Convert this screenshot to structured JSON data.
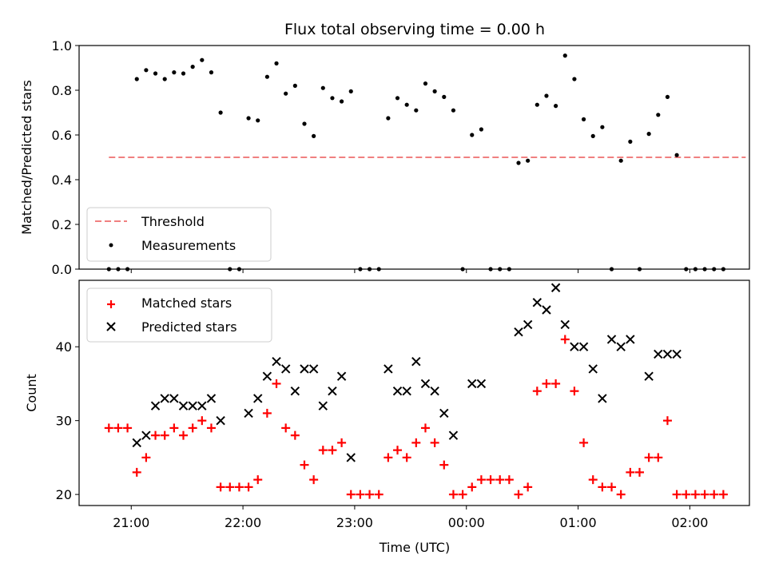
{
  "chart_data": [
    {
      "type": "scatter",
      "title": "Flux total observing time = 0.00 h",
      "xlabel": "",
      "ylabel": "Matched/Predicted stars",
      "xlim": [
        "20:32",
        "02:32"
      ],
      "ylim": [
        0,
        1.0
      ],
      "yticks": [
        "0.0",
        "0.2",
        "0.4",
        "0.6",
        "0.8",
        "1.0"
      ],
      "xticks_at": [
        "21:00",
        "22:00",
        "23:00",
        "00:00",
        "01:00",
        "02:00"
      ],
      "legend_position": "lower-left",
      "threshold": {
        "name": "Threshold",
        "value": 0.5,
        "x_start": "20:48",
        "x_end": "02:30",
        "color": "#f08080"
      },
      "measurements": {
        "name": "Measurements",
        "color": "#000000",
        "x": [
          "20:48",
          "20:53",
          "20:58",
          "21:03",
          "21:08",
          "21:13",
          "21:18",
          "21:23",
          "21:28",
          "21:33",
          "21:38",
          "21:43",
          "21:48",
          "21:53",
          "21:58",
          "22:03",
          "22:08",
          "22:13",
          "22:18",
          "22:23",
          "22:28",
          "22:33",
          "22:38",
          "22:43",
          "22:48",
          "22:53",
          "22:58",
          "23:03",
          "23:08",
          "23:13",
          "23:18",
          "23:23",
          "23:28",
          "23:33",
          "23:38",
          "23:43",
          "23:48",
          "23:53",
          "23:58",
          "00:03",
          "00:08",
          "00:13",
          "00:18",
          "00:23",
          "00:28",
          "00:33",
          "00:38",
          "00:43",
          "00:48",
          "00:53",
          "00:58",
          "01:03",
          "01:08",
          "01:13",
          "01:18",
          "01:23",
          "01:28",
          "01:33",
          "01:38",
          "01:43",
          "01:48",
          "01:53",
          "01:58",
          "02:03",
          "02:08",
          "02:13",
          "02:18"
        ],
        "y": [
          0.0,
          0.0,
          0.0,
          0.85,
          0.89,
          0.875,
          0.85,
          0.88,
          0.875,
          0.905,
          0.935,
          0.88,
          0.7,
          0.0,
          0.0,
          0.675,
          0.665,
          0.86,
          0.92,
          0.785,
          0.82,
          0.65,
          0.595,
          0.81,
          0.765,
          0.75,
          0.795,
          0.0,
          0.0,
          0.0,
          0.675,
          0.765,
          0.735,
          0.71,
          0.83,
          0.795,
          0.77,
          0.71,
          0.0,
          0.6,
          0.625,
          0.0,
          0.0,
          0.0,
          0.475,
          0.485,
          0.735,
          0.775,
          0.73,
          0.955,
          0.85,
          0.67,
          0.595,
          0.635,
          0.0,
          0.485,
          0.57,
          0.0,
          0.605,
          0.69,
          0.77,
          0.51,
          0.0,
          0.0,
          0.0,
          0.0,
          0.0
        ]
      }
    },
    {
      "type": "scatter",
      "title": "",
      "xlabel": "Time (UTC)",
      "ylabel": "Count",
      "xlim": [
        "20:32",
        "02:32"
      ],
      "ylim": [
        18.5,
        49.0
      ],
      "yticks": [
        "20",
        "30",
        "40"
      ],
      "xticks": [
        "21:00",
        "22:00",
        "23:00",
        "00:00",
        "01:00",
        "02:00"
      ],
      "legend_position": "upper-left",
      "series": [
        {
          "name": "Matched stars",
          "marker": "plus",
          "color": "#ff0000",
          "x": [
            "20:48",
            "20:53",
            "20:58",
            "21:03",
            "21:08",
            "21:13",
            "21:18",
            "21:23",
            "21:28",
            "21:33",
            "21:38",
            "21:43",
            "21:48",
            "21:53",
            "21:58",
            "22:03",
            "22:08",
            "22:13",
            "22:18",
            "22:23",
            "22:28",
            "22:33",
            "22:38",
            "22:43",
            "22:48",
            "22:53",
            "22:58",
            "23:03",
            "23:08",
            "23:13",
            "23:18",
            "23:23",
            "23:28",
            "23:33",
            "23:38",
            "23:43",
            "23:48",
            "23:53",
            "23:58",
            "00:03",
            "00:08",
            "00:13",
            "00:18",
            "00:23",
            "00:28",
            "00:33",
            "00:38",
            "00:43",
            "00:48",
            "00:53",
            "00:58",
            "01:03",
            "01:08",
            "01:13",
            "01:18",
            "01:23",
            "01:28",
            "01:33",
            "01:38",
            "01:43",
            "01:48",
            "01:53",
            "01:58",
            "02:03",
            "02:08",
            "02:13",
            "02:18"
          ],
          "y": [
            29,
            29,
            29,
            23,
            25,
            28,
            28,
            29,
            28,
            29,
            30,
            29,
            21,
            21,
            21,
            21,
            22,
            31,
            35,
            29,
            28,
            24,
            22,
            26,
            26,
            27,
            20,
            20,
            20,
            20,
            25,
            26,
            25,
            27,
            29,
            27,
            24,
            20,
            20,
            21,
            22,
            22,
            22,
            22,
            20,
            21,
            34,
            35,
            35,
            41,
            34,
            27,
            22,
            21,
            21,
            20,
            23,
            23,
            25,
            25,
            30,
            20,
            20,
            20,
            20,
            20,
            20
          ]
        },
        {
          "name": "Predicted stars",
          "marker": "x",
          "color": "#000000",
          "x": [
            "21:03",
            "21:08",
            "21:13",
            "21:18",
            "21:23",
            "21:28",
            "21:33",
            "21:38",
            "21:43",
            "21:48",
            "22:03",
            "22:08",
            "22:13",
            "22:18",
            "22:23",
            "22:28",
            "22:33",
            "22:38",
            "22:43",
            "22:48",
            "22:53",
            "22:58",
            "23:18",
            "23:23",
            "23:28",
            "23:33",
            "23:38",
            "23:43",
            "23:48",
            "23:53",
            "24:03",
            "24:08",
            "24:28",
            "24:33",
            "24:38",
            "24:43",
            "24:48",
            "24:53",
            "24:58",
            "25:03",
            "25:08",
            "25:13",
            "25:18",
            "25:23",
            "25:28",
            "25:38",
            "25:43",
            "25:48",
            "25:53"
          ],
          "y": [
            27,
            28,
            32,
            33,
            33,
            32,
            32,
            32,
            33,
            30,
            31,
            33,
            36,
            38,
            37,
            34,
            37,
            37,
            32,
            34,
            36,
            25,
            37,
            34,
            34,
            38,
            35,
            34,
            31,
            28,
            35,
            35,
            42,
            43,
            46,
            45,
            48,
            43,
            40,
            40,
            37,
            33,
            41,
            40,
            41,
            36,
            39,
            39,
            39
          ]
        }
      ]
    }
  ]
}
